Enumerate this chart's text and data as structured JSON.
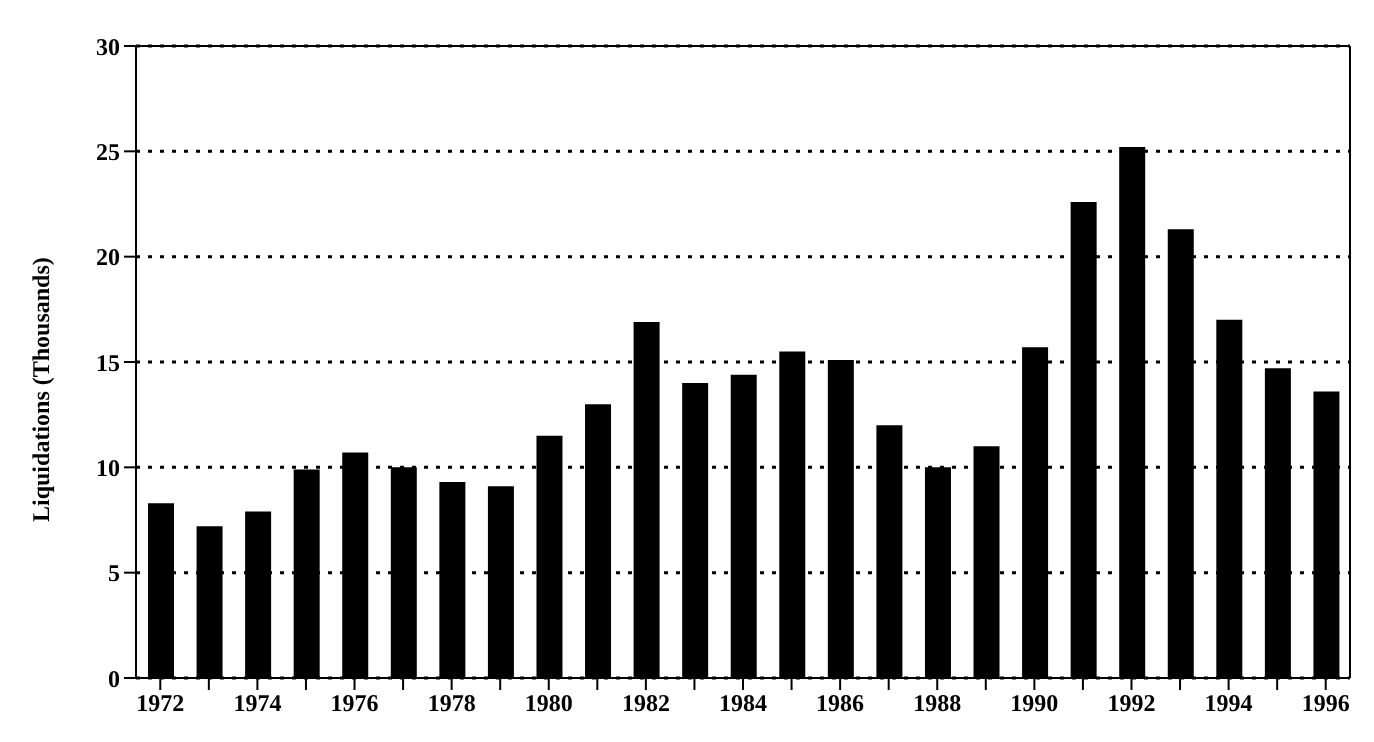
{
  "chart_data": {
    "type": "bar",
    "ylabel": "Liquidations (Thousands)",
    "categories": [
      "1972",
      null,
      "1974",
      null,
      "1976",
      null,
      "1978",
      null,
      "1980",
      null,
      "1982",
      null,
      "1984",
      null,
      "1986",
      null,
      "1988",
      null,
      "1990",
      null,
      "1992",
      null,
      "1994",
      null,
      "1996"
    ],
    "values": [
      8.3,
      7.2,
      7.9,
      9.9,
      10.7,
      10.0,
      9.3,
      9.1,
      11.5,
      13.0,
      16.9,
      14.0,
      14.4,
      15.5,
      15.1,
      12.0,
      10.0,
      11.0,
      15.7,
      22.6,
      25.2,
      21.3,
      17.0,
      14.7,
      13.6
    ],
    "color": "#000000",
    "ylim": [
      0,
      30
    ],
    "yticks": [
      0,
      5,
      10,
      15,
      20,
      25,
      30
    ],
    "grid": "y",
    "legend": false
  }
}
